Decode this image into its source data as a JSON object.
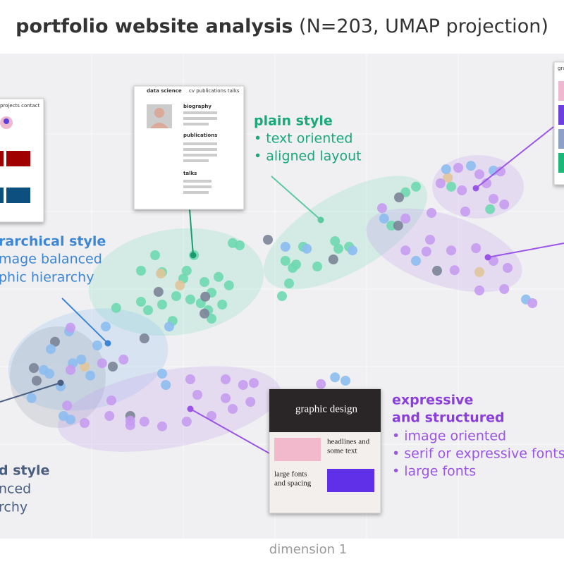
{
  "chart_data": {
    "type": "scatter",
    "title": "portfolio website analysis",
    "subtitle": "(N=203, UMAP projection)",
    "xlabel": "dimension 1",
    "xlim": [
      0,
      100
    ],
    "ylim": [
      0,
      100
    ],
    "series": [
      {
        "color": "#6ed9b0",
        "x": [
          42.5,
          41.25,
          34.4,
          27.5,
          28.75,
          25,
          33.1,
          36.25,
          38.75,
          37.5,
          40.6,
          31.25,
          33.75,
          35.6,
          25,
          28.75,
          20.6,
          26.25,
          30.6,
          37.5,
          39.4,
          32.5,
          36.9,
          50.6,
          51.25,
          52.5,
          59.4,
          61.9,
          60,
          53.75,
          51.9,
          50,
          73.75,
          71.9,
          56.25,
          69.4,
          86.9,
          80
        ],
        "values": [
          56.5,
          56.9,
          54.75,
          54.75,
          51.75,
          52,
          52,
          50,
          50.9,
          48.1,
          49.4,
          47.5,
          46.9,
          46.25,
          46.5,
          46,
          45.4,
          45,
          43.1,
          43.5,
          46,
          50.6,
          45,
          53.75,
          49.75,
          53.1,
          57.25,
          56.25,
          55.9,
          56.25,
          52.5,
          47.5,
          66.9,
          65.9,
          52.75,
          60,
          62.9,
          66.9
        ]
      },
      {
        "color": "#e0c59a",
        "x": [
          28.5,
          31.9,
          15,
          79.4,
          85
        ],
        "values": [
          51.5,
          49.4,
          35,
          68.5,
          51.75
        ]
      },
      {
        "color": "#7b8497",
        "x": [
          47.5,
          59.1,
          70.75,
          77.5,
          28.1,
          36.4,
          25.6,
          6,
          6.5,
          9.75,
          20,
          23.1,
          70.6,
          36.25
        ],
        "values": [
          57.5,
          54,
          65,
          52,
          48.25,
          47.4,
          40,
          34.75,
          32.5,
          39.4,
          35,
          26.25,
          60,
          44.4
        ]
      },
      {
        "color": "#8cbdf0",
        "x": [
          18.75,
          17.25,
          12.9,
          14.4,
          9,
          7.75,
          8.75,
          16,
          10.75,
          12.25,
          5.6,
          11.25,
          12.5,
          28.75,
          29.4,
          54.4,
          62.5,
          68.1,
          73.75,
          87.5,
          93.25,
          59.4,
          61.25,
          83.5,
          79.1,
          30,
          50.6
        ],
        "values": [
          42.1,
          38.75,
          35.6,
          36.25,
          38.1,
          34.4,
          33.75,
          33.4,
          31.5,
          41.25,
          29.4,
          26.25,
          25.6,
          33.75,
          31.75,
          55.9,
          55.6,
          61.25,
          53.75,
          69.75,
          46.9,
          33.1,
          32.5,
          70.6,
          70,
          42.1,
          56.25
        ]
      },
      {
        "color": "#c59bf0",
        "x": [
          12.5,
          18.1,
          21.9,
          33.75,
          35,
          40,
          43.1,
          45,
          44.4,
          41.25,
          40,
          37.5,
          33.1,
          28.75,
          25.6,
          23.1,
          19.4,
          15,
          11.9,
          19.75,
          23.1,
          56.9,
          81.25,
          85,
          88.75,
          81.9,
          82.5,
          87.5,
          89.4,
          86.25,
          78.1,
          67.75,
          71.9,
          76.25,
          80,
          84.4,
          87.5,
          90,
          89.4,
          85,
          75.6,
          80.6,
          94.4,
          71.9,
          76.5,
          12.5
        ],
        "values": [
          41.9,
          35.6,
          36.25,
          32.75,
          30,
          32.75,
          31.75,
          32.1,
          28.75,
          27.5,
          29.4,
          26.25,
          25.25,
          24.4,
          25.25,
          25.4,
          26.25,
          25,
          28.1,
          29,
          24.6,
          31.9,
          70.25,
          69.1,
          69.6,
          66.25,
          62.5,
          64.75,
          63.75,
          67.5,
          67.5,
          63.1,
          55.6,
          57.5,
          55.6,
          56,
          53.75,
          52.5,
          48.75,
          48.5,
          55.4,
          52.1,
          46.25,
          61.25,
          62.25,
          34.4
        ]
      }
    ],
    "annotations": [
      {
        "lines": [
          "plain style",
          "• text oriented",
          "• aligned layout"
        ]
      },
      {
        "lines": [
          "rarchical style",
          "mage balanced",
          "phic hierarchy"
        ]
      },
      {
        "lines": [
          "d style",
          "nced",
          "rchy"
        ]
      },
      {
        "lines": [
          "expressive",
          "and structured",
          "• image oriented",
          "• serif or expressive fonts",
          "• large fonts"
        ]
      }
    ],
    "thumbnails": [
      {
        "texts": [
          "data science",
          "cv  publications  talks",
          "biography",
          "publications",
          "talks"
        ]
      },
      {
        "texts": [
          "projects contact"
        ]
      },
      {
        "texts": [
          "gra"
        ]
      },
      {
        "texts": [
          "graphic design",
          "headlines and",
          "some text",
          "large fonts",
          "and spacing"
        ]
      }
    ]
  }
}
